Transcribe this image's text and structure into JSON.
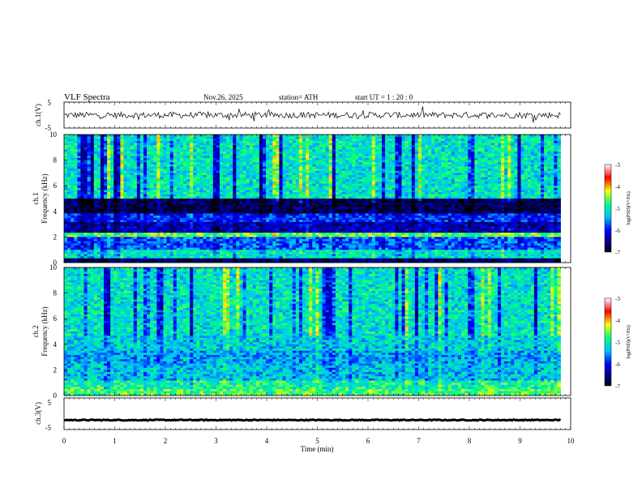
{
  "header": {
    "title": "VLF  Spectra",
    "date": "Nov.26, 2025",
    "station": "station= ATH",
    "start": "start  UT  =   1 : 20 : 0"
  },
  "chart_data": [
    {
      "type": "line",
      "name": "ch1-waveform",
      "ylabel": "ch.1(V)",
      "ylim": [
        -5,
        5
      ],
      "yticks": [
        "5",
        "-5"
      ],
      "xlim": [
        0,
        10
      ],
      "x_end": 9.8,
      "baseline": 0,
      "amplitude": 1.2
    },
    {
      "type": "heatmap",
      "name": "ch1-spectrogram",
      "ylabel": "Frequency  (kHz)",
      "channel": "ch.1",
      "ylim": [
        0,
        10
      ],
      "yticks": [
        "0",
        "2",
        "4",
        "6",
        "8",
        "10"
      ],
      "xlim": [
        0,
        9.8
      ],
      "bands": [
        {
          "from": 0.0,
          "to": 0.3,
          "level": -6.5
        },
        {
          "from": 0.3,
          "to": 1.0,
          "level": -5.0
        },
        {
          "from": 1.0,
          "to": 2.0,
          "level": -5.6
        },
        {
          "from": 2.0,
          "to": 2.3,
          "level": -4.5
        },
        {
          "from": 2.3,
          "to": 3.2,
          "level": -6.2
        },
        {
          "from": 3.2,
          "to": 3.8,
          "level": -5.8
        },
        {
          "from": 3.8,
          "to": 5.0,
          "level": -6.6
        },
        {
          "from": 5.0,
          "to": 10.0,
          "level": -5.0
        }
      ]
    },
    {
      "type": "heatmap",
      "name": "ch2-spectrogram",
      "ylabel": "Frequency  (kHz)",
      "channel": "ch.2",
      "ylim": [
        0,
        10
      ],
      "yticks": [
        "0",
        "2",
        "4",
        "6",
        "8",
        "10"
      ],
      "xlim": [
        0,
        9.8
      ],
      "bands": [
        {
          "from": 0.0,
          "to": 0.5,
          "level": -4.6
        },
        {
          "from": 0.5,
          "to": 1.2,
          "level": -4.8
        },
        {
          "from": 1.2,
          "to": 2.5,
          "level": -5.2
        },
        {
          "from": 2.5,
          "to": 3.5,
          "level": -5.3
        },
        {
          "from": 3.5,
          "to": 4.6,
          "level": -5.1
        },
        {
          "from": 4.6,
          "to": 10.0,
          "level": -5.0
        }
      ]
    },
    {
      "type": "line",
      "name": "ch3-waveform",
      "ylabel": "ch.3(V)",
      "ylim": [
        -5,
        5
      ],
      "yticks": [
        "5",
        "-5"
      ],
      "xlim": [
        0,
        10
      ],
      "x_end": 9.8,
      "baseline": -2,
      "amplitude": 0.15
    }
  ],
  "colorbar": {
    "label": "log(PSD)(V²/Hz)",
    "range": [
      -7,
      -3
    ],
    "ticks": [
      "-3",
      "-4",
      "-5",
      "-6",
      "-7"
    ],
    "colors": [
      "#000000",
      "#000080",
      "#0000ff",
      "#00c0ff",
      "#00ff80",
      "#ffff00",
      "#ff0000",
      "#ffffff"
    ]
  },
  "xaxis": {
    "label": "Time  (min)",
    "ticks": [
      "0",
      "1",
      "2",
      "3",
      "4",
      "5",
      "6",
      "7",
      "8",
      "9",
      "10"
    ],
    "range": [
      0,
      10
    ]
  }
}
